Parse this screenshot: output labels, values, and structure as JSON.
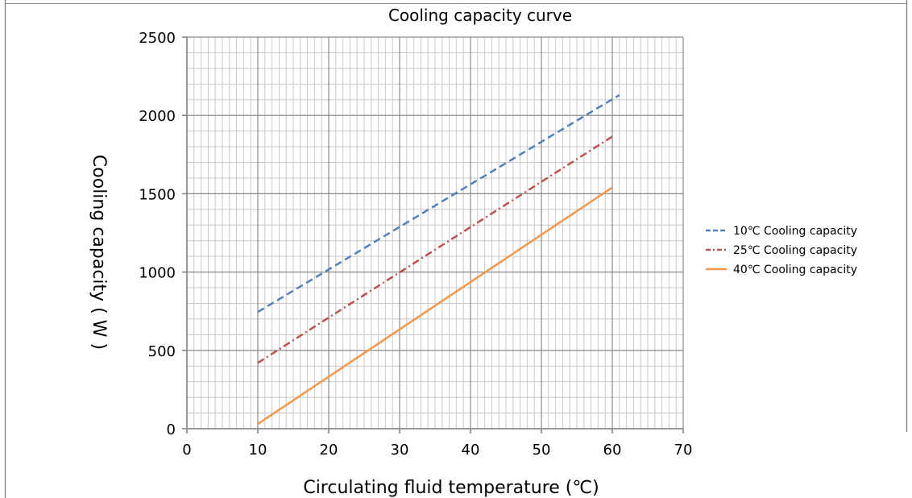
{
  "chart_data": {
    "type": "line",
    "title": "Cooling capacity curve",
    "xlabel": "Circulating fluid temperature (℃)",
    "ylabel": "Cooling capacity ( W )",
    "xlim": [
      0,
      70
    ],
    "ylim": [
      0,
      2500
    ],
    "xticks": [
      0,
      10,
      20,
      30,
      40,
      50,
      60,
      70
    ],
    "yticks": [
      0,
      500,
      1000,
      1500,
      2000,
      2500
    ],
    "x_tick_labels": [
      "0",
      "10",
      "20",
      "30",
      "40",
      "50",
      "60",
      "70"
    ],
    "y_tick_labels": [
      "0",
      "500",
      "1000",
      "1500",
      "2000",
      "2500"
    ],
    "grid": true,
    "legend_position": "right",
    "series": [
      {
        "name": "10℃ Cooling capacity",
        "x": [
          10,
          61
        ],
        "y": [
          745,
          2130
        ],
        "color": "#4f81bd",
        "dash": "dash"
      },
      {
        "name": "25℃ Cooling capacity",
        "x": [
          10,
          60
        ],
        "y": [
          420,
          1865
        ],
        "color": "#c0504d",
        "dash": "dashdot"
      },
      {
        "name": "40℃ Cooling capacity",
        "x": [
          10,
          60
        ],
        "y": [
          30,
          1540
        ],
        "color": "#f79646",
        "dash": "solid"
      }
    ]
  }
}
